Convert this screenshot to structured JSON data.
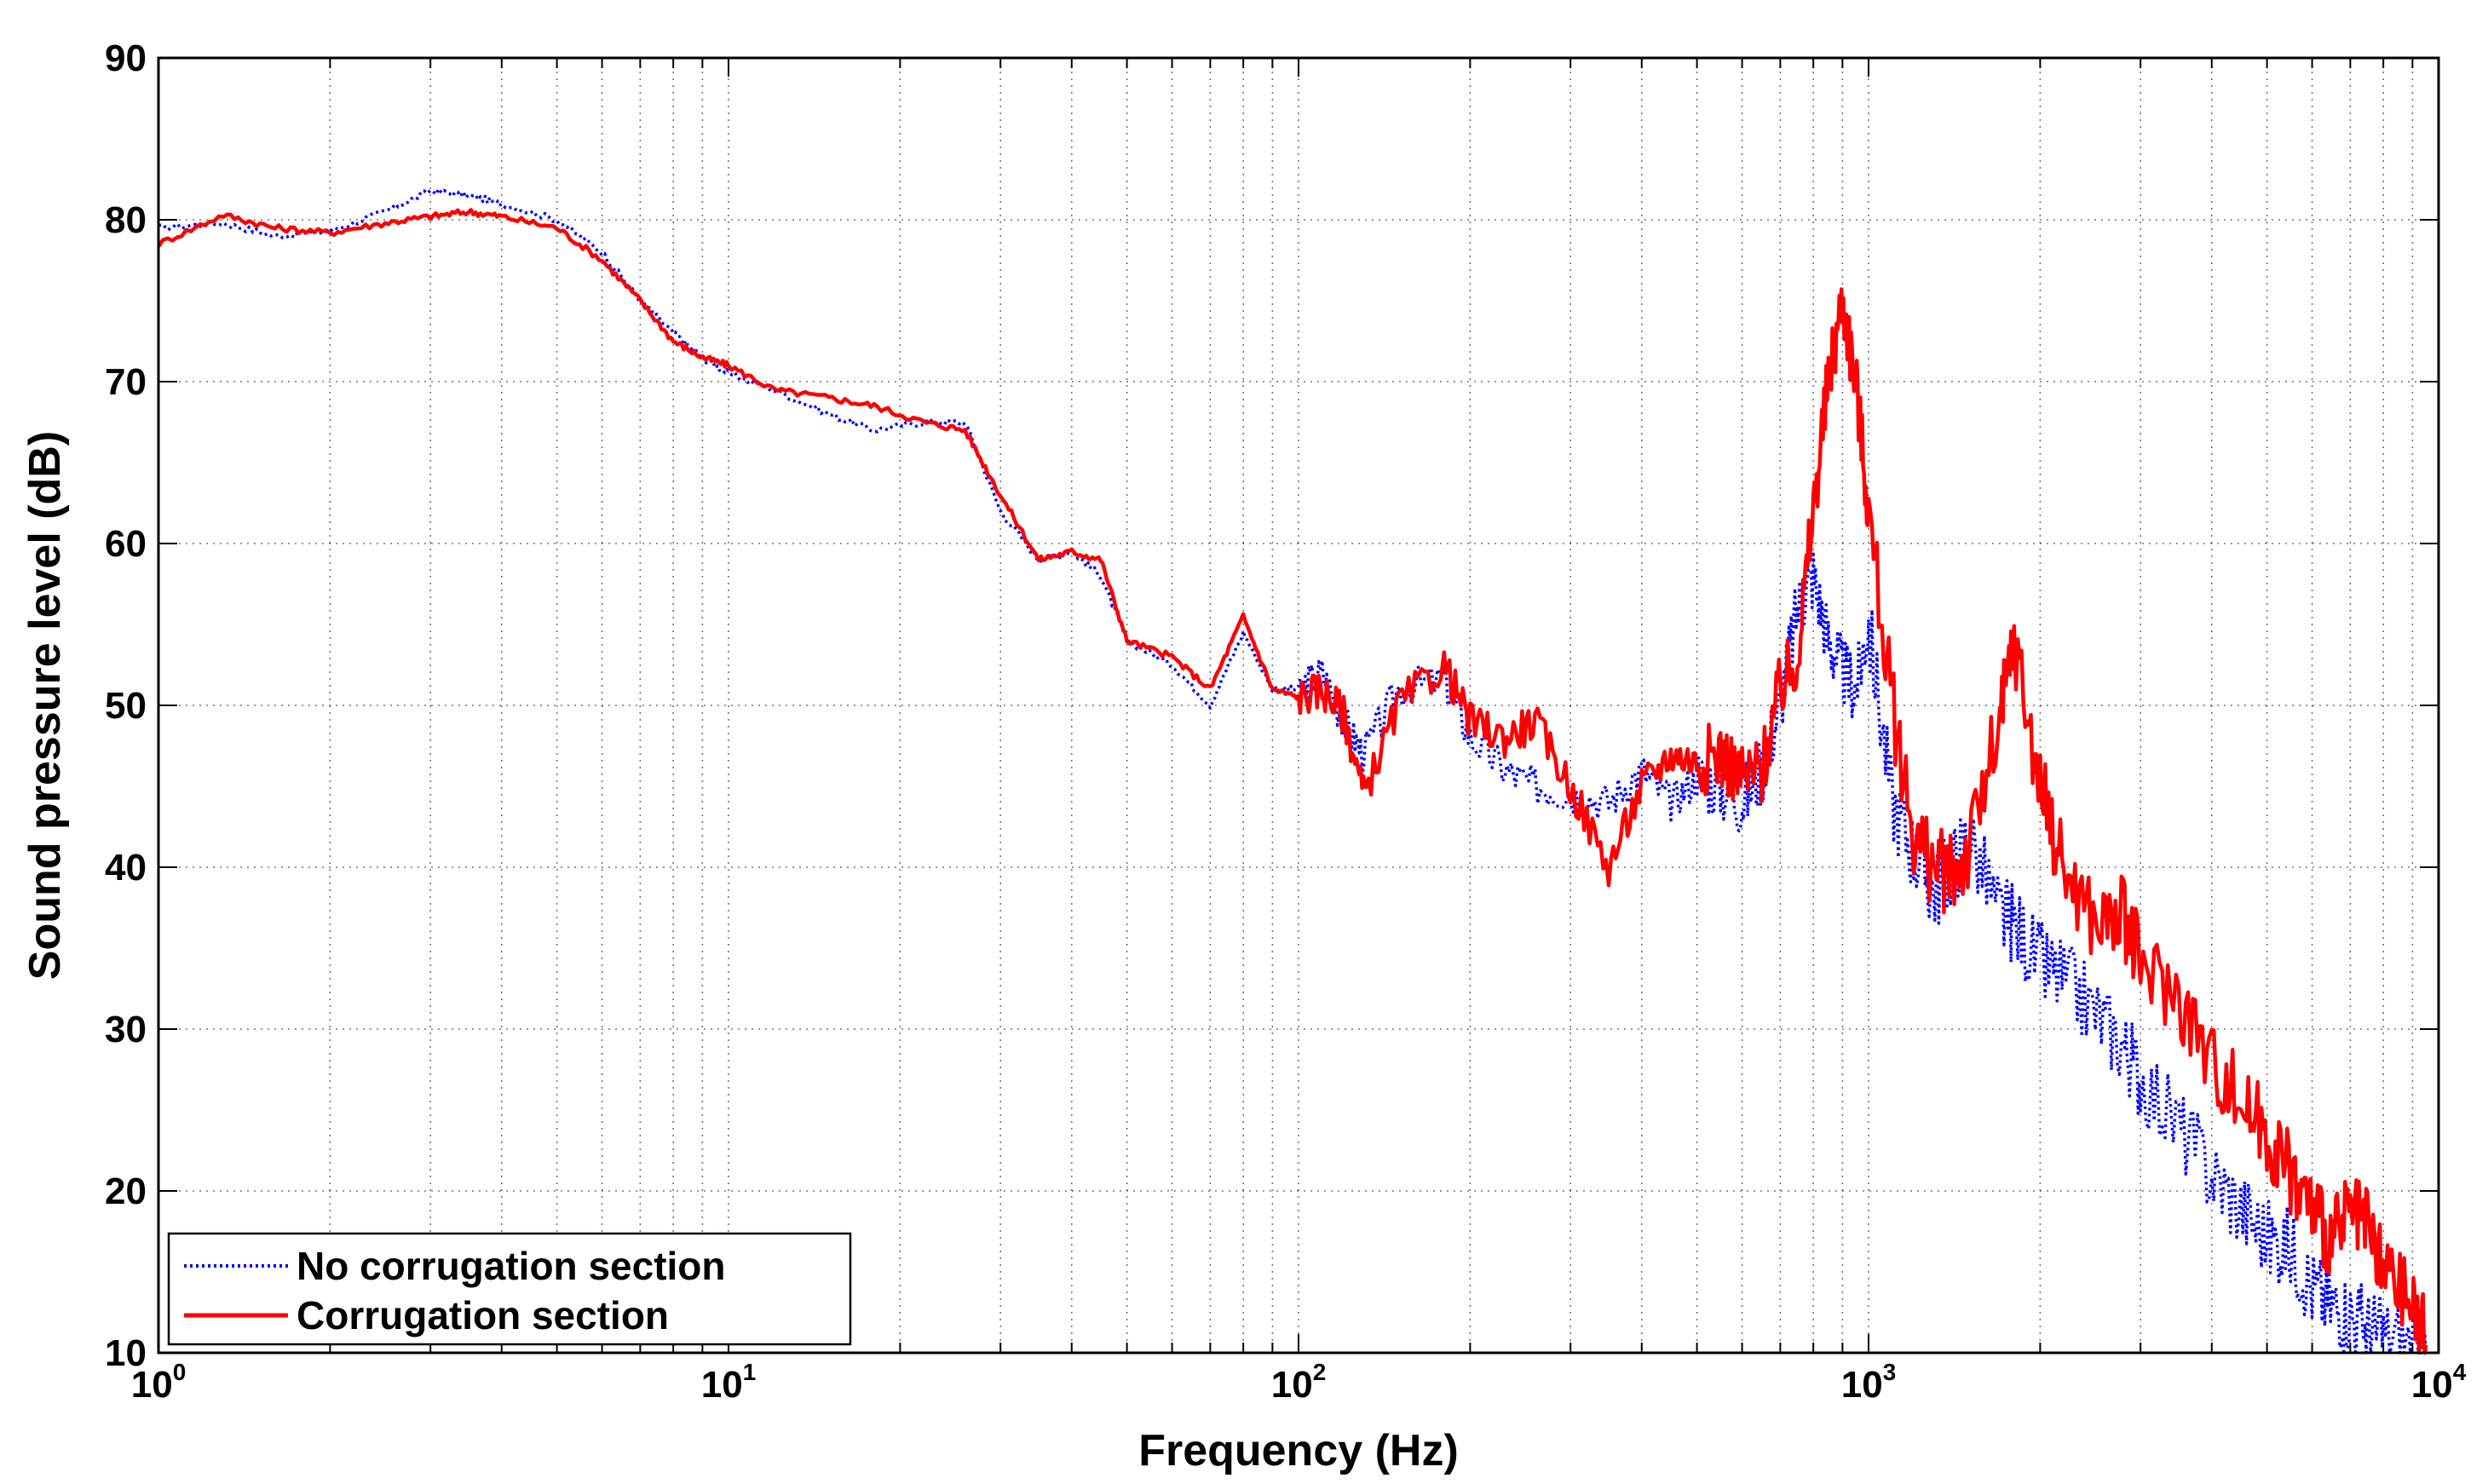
{
  "chart_data": {
    "type": "line",
    "title": "",
    "xlabel": "Frequency (Hz)",
    "ylabel": "Sound pressure level (dB)",
    "xscale": "log",
    "xlim": [
      1,
      10000
    ],
    "ylim": [
      10,
      90
    ],
    "grid": true,
    "x_ticks": [
      {
        "base": "10",
        "exp": "0"
      },
      {
        "base": "10",
        "exp": "1"
      },
      {
        "base": "10",
        "exp": "2"
      },
      {
        "base": "10",
        "exp": "3"
      },
      {
        "base": "10",
        "exp": "4"
      }
    ],
    "y_ticks": [
      "10",
      "20",
      "30",
      "40",
      "50",
      "60",
      "70",
      "80",
      "90"
    ],
    "legend_position": "bottom-left",
    "series": [
      {
        "name": "No corrugation section",
        "color": "#0000ff",
        "style": "dotted",
        "x": [
          1,
          1.3,
          1.6,
          2,
          2.5,
          3,
          3.5,
          4,
          5,
          6,
          7,
          8,
          9,
          10,
          12,
          15,
          18,
          22,
          26,
          30,
          35,
          40,
          45,
          50,
          60,
          70,
          80,
          90,
          100,
          110,
          120,
          130,
          150,
          180,
          200,
          230,
          260,
          300,
          350,
          400,
          450,
          500,
          550,
          600,
          650,
          700,
          750,
          800,
          850,
          900,
          950,
          1000,
          1100,
          1200,
          1300,
          1400,
          1500,
          1700,
          1800,
          2000,
          2200,
          2500,
          2800,
          3000,
          3500,
          4000,
          4500,
          5000,
          5500,
          6000,
          6500,
          7000,
          7500,
          8000,
          9000,
          9500
        ],
        "y": [
          79.5,
          79.8,
          79,
          79.3,
          80.5,
          81.8,
          81.5,
          81,
          80,
          78,
          75,
          73,
          71.5,
          70.5,
          69.5,
          68,
          67,
          67.5,
          67.5,
          62,
          59,
          59.5,
          58,
          54,
          52.5,
          50,
          54.5,
          51,
          51,
          52,
          49,
          47,
          51,
          51.5,
          48,
          46,
          45,
          44.5,
          44,
          46,
          44,
          45.5,
          45,
          44,
          46,
          50,
          56,
          58,
          54,
          52,
          51,
          55,
          44,
          41,
          38.5,
          40,
          42,
          37,
          36.5,
          34,
          33,
          31,
          29,
          27,
          24,
          21,
          19,
          17,
          16.5,
          14,
          13,
          12.5,
          11.5,
          11,
          10.5,
          10
        ]
      },
      {
        "name": "Corrugation section",
        "color": "#ff0000",
        "style": "solid",
        "x": [
          1,
          1.3,
          1.6,
          2,
          2.5,
          3,
          3.5,
          4,
          5,
          6,
          7,
          8,
          9,
          10,
          12,
          15,
          18,
          22,
          26,
          30,
          35,
          40,
          45,
          50,
          60,
          70,
          80,
          90,
          100,
          110,
          120,
          130,
          150,
          180,
          200,
          230,
          260,
          300,
          350,
          400,
          450,
          500,
          550,
          600,
          650,
          700,
          750,
          800,
          850,
          900,
          950,
          1000,
          1100,
          1200,
          1300,
          1400,
          1500,
          1700,
          1800,
          2000,
          2200,
          2500,
          2800,
          3000,
          3500,
          4000,
          4500,
          5000,
          5500,
          6000,
          6500,
          7000,
          7500,
          8000,
          9000,
          9500
        ],
        "y": [
          78.5,
          80.3,
          79.5,
          79.2,
          79.8,
          80.2,
          80.5,
          80.2,
          79.5,
          77.5,
          75,
          72.5,
          71.5,
          71,
          69.5,
          69,
          68.5,
          67.5,
          67,
          63,
          59,
          59.5,
          59,
          54,
          53,
          51,
          55.5,
          51,
          50.5,
          51,
          49.5,
          44.5,
          50,
          52.5,
          49,
          48,
          49,
          45,
          40,
          45,
          47,
          46.5,
          47,
          45.5,
          46,
          51,
          53,
          62,
          70,
          75,
          70,
          62,
          50,
          42,
          40,
          39.5,
          41,
          49,
          54,
          45,
          40,
          36.5,
          37,
          34,
          32,
          28,
          25.5,
          23.5,
          21,
          19,
          17,
          18.5,
          17.5,
          15,
          13,
          10.5
        ]
      }
    ]
  }
}
